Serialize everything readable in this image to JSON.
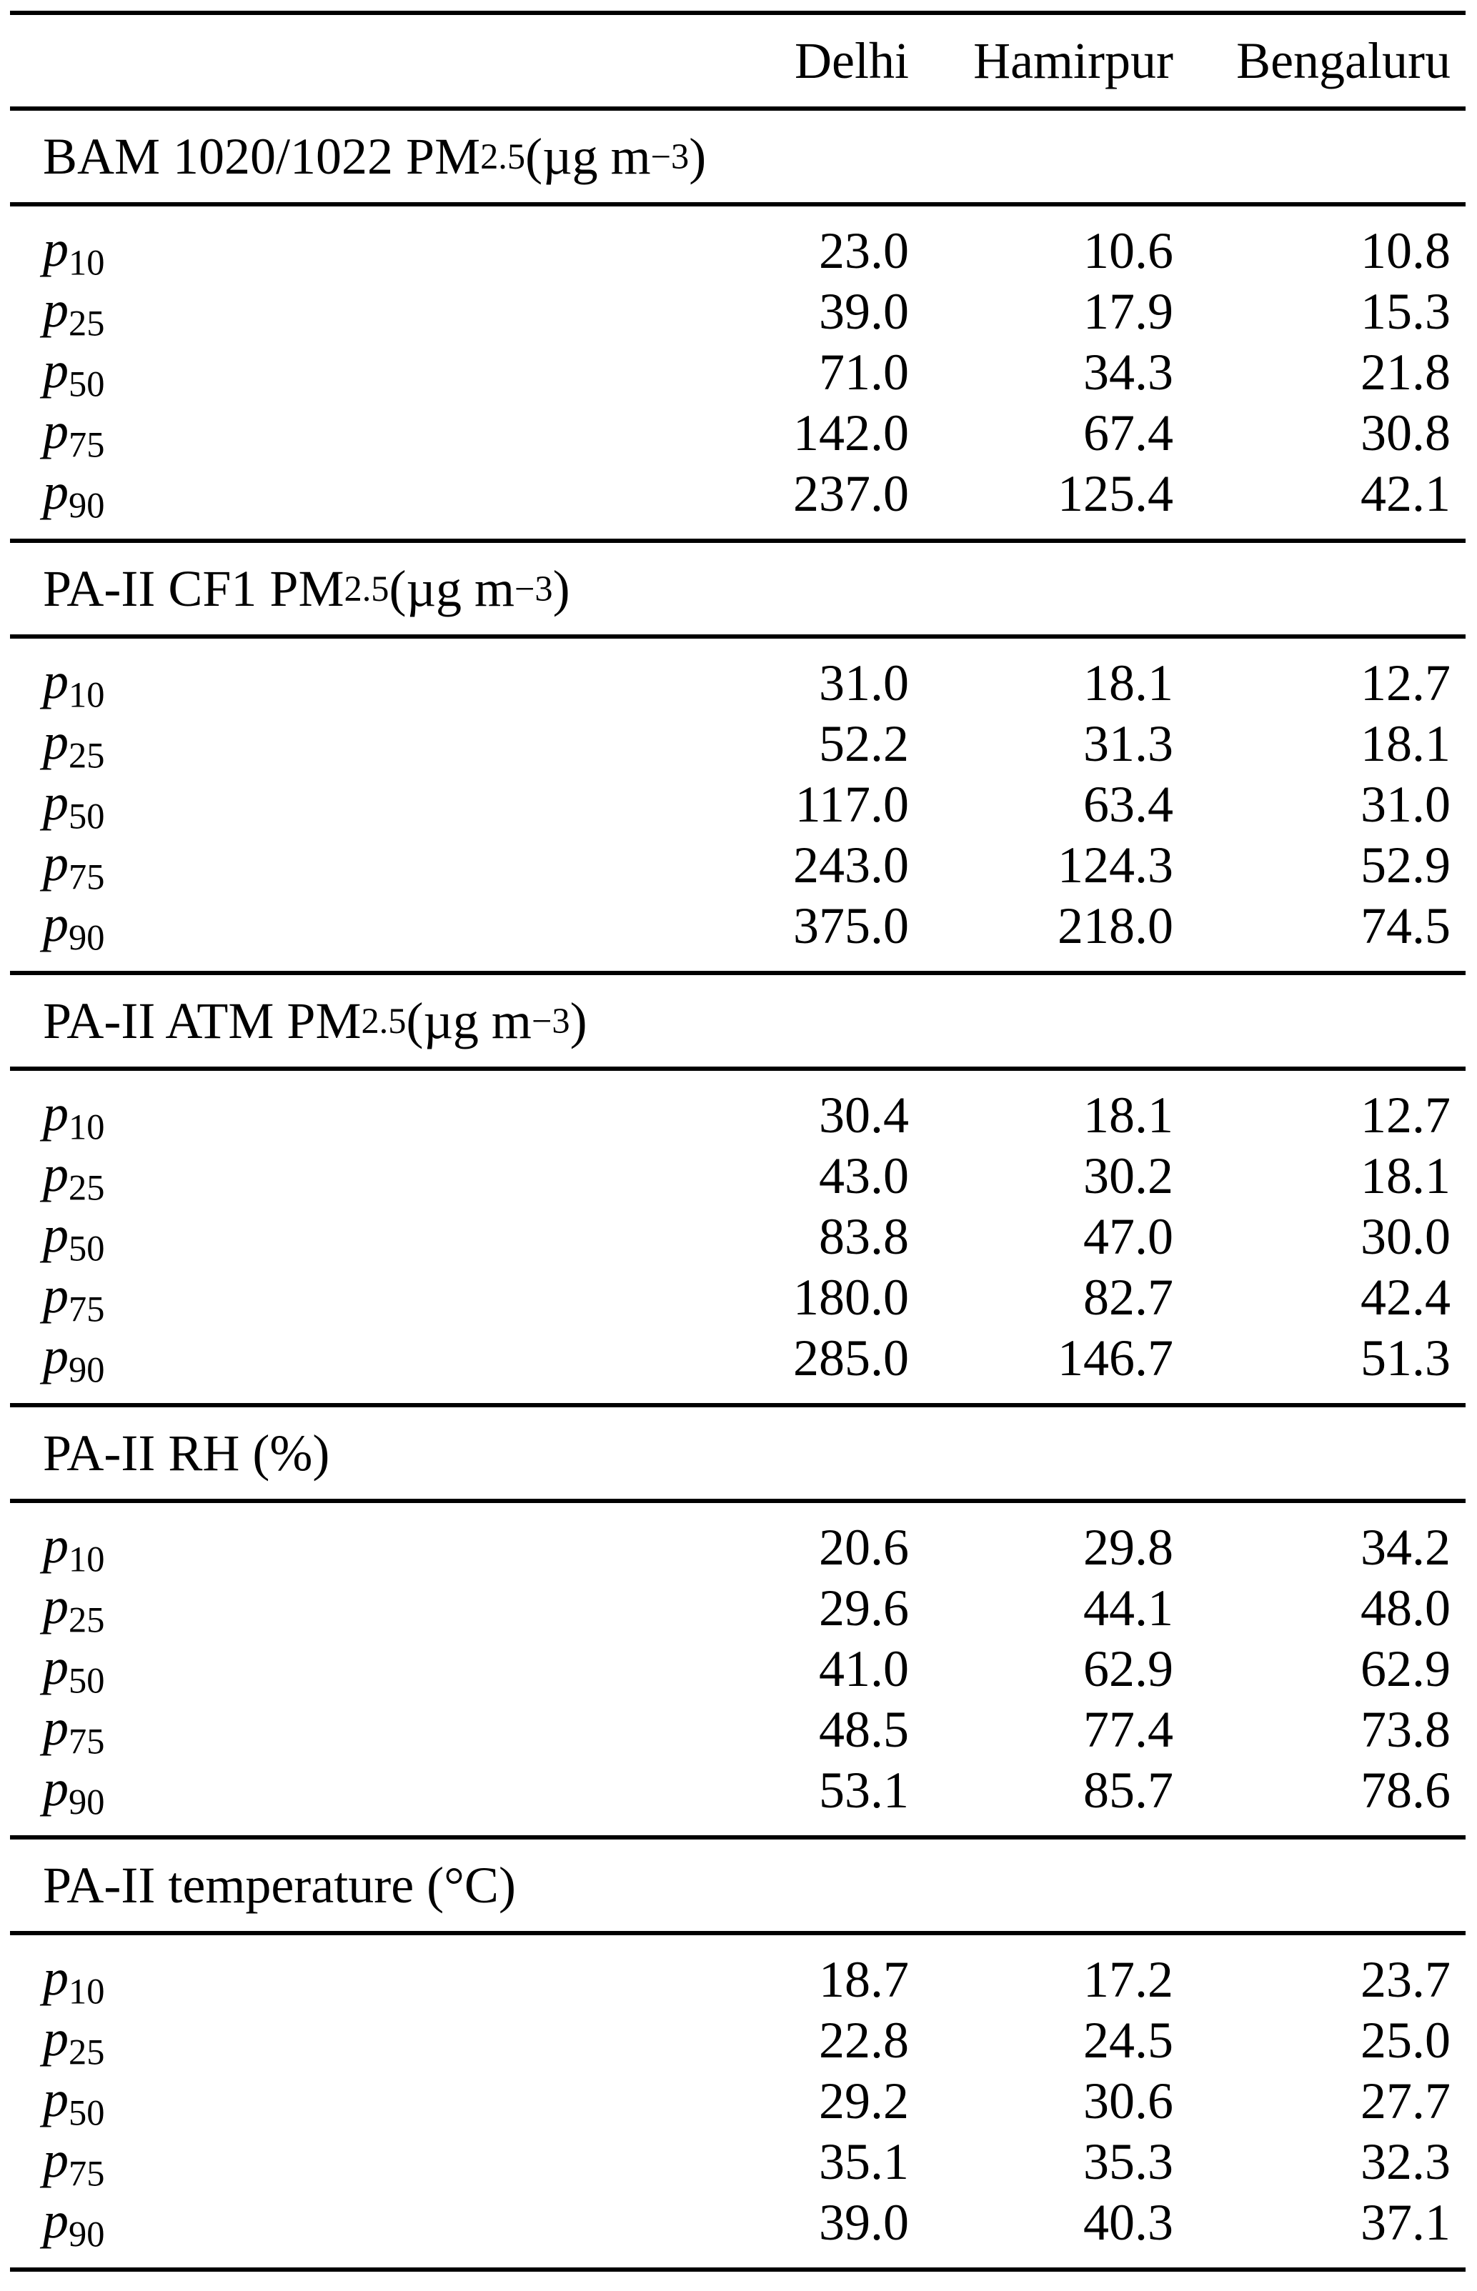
{
  "meta": {
    "background_color": "#ffffff",
    "text_color": "#000000",
    "rule_color": "#000000"
  },
  "table": {
    "header": {
      "columns": [
        "Delhi",
        "Hamirpur",
        "Bengaluru"
      ]
    },
    "sections": [
      {
        "id": "bam-pm25",
        "title": [
          {
            "t": "BAM 1020/1022 PM"
          },
          {
            "t": "2.5",
            "s": "sub"
          },
          {
            "t": " (µg m"
          },
          {
            "t": "−3",
            "s": "sup"
          },
          {
            "t": ")"
          }
        ],
        "rows": [
          {
            "label": [
              {
                "t": "p",
                "s": "it"
              },
              {
                "t": "10",
                "s": "sub"
              }
            ],
            "values": [
              "23.0",
              "10.6",
              "10.8"
            ]
          },
          {
            "label": [
              {
                "t": "p",
                "s": "it"
              },
              {
                "t": "25",
                "s": "sub"
              }
            ],
            "values": [
              "39.0",
              "17.9",
              "15.3"
            ]
          },
          {
            "label": [
              {
                "t": "p",
                "s": "it"
              },
              {
                "t": "50",
                "s": "sub"
              }
            ],
            "values": [
              "71.0",
              "34.3",
              "21.8"
            ]
          },
          {
            "label": [
              {
                "t": "p",
                "s": "it"
              },
              {
                "t": "75",
                "s": "sub"
              }
            ],
            "values": [
              "142.0",
              "67.4",
              "30.8"
            ]
          },
          {
            "label": [
              {
                "t": "p",
                "s": "it"
              },
              {
                "t": "90",
                "s": "sub"
              }
            ],
            "values": [
              "237.0",
              "125.4",
              "42.1"
            ]
          }
        ]
      },
      {
        "id": "pa2-cf1-pm25",
        "title": [
          {
            "t": "PA-II CF1 PM"
          },
          {
            "t": "2.5",
            "s": "sub"
          },
          {
            "t": " (µg m"
          },
          {
            "t": "−3",
            "s": "sup"
          },
          {
            "t": ")"
          }
        ],
        "rows": [
          {
            "label": [
              {
                "t": "p",
                "s": "it"
              },
              {
                "t": "10",
                "s": "sub"
              }
            ],
            "values": [
              "31.0",
              "18.1",
              "12.7"
            ]
          },
          {
            "label": [
              {
                "t": "p",
                "s": "it"
              },
              {
                "t": "25",
                "s": "sub"
              }
            ],
            "values": [
              "52.2",
              "31.3",
              "18.1"
            ]
          },
          {
            "label": [
              {
                "t": "p",
                "s": "it"
              },
              {
                "t": "50",
                "s": "sub"
              }
            ],
            "values": [
              "117.0",
              "63.4",
              "31.0"
            ]
          },
          {
            "label": [
              {
                "t": "p",
                "s": "it"
              },
              {
                "t": "75",
                "s": "sub"
              }
            ],
            "values": [
              "243.0",
              "124.3",
              "52.9"
            ]
          },
          {
            "label": [
              {
                "t": "p",
                "s": "it"
              },
              {
                "t": "90",
                "s": "sub"
              }
            ],
            "values": [
              "375.0",
              "218.0",
              "74.5"
            ]
          }
        ]
      },
      {
        "id": "pa2-atm-pm25",
        "title": [
          {
            "t": "PA-II ATM PM"
          },
          {
            "t": "2.5",
            "s": "sub"
          },
          {
            "t": " (µg m"
          },
          {
            "t": "−3",
            "s": "sup"
          },
          {
            "t": ")"
          }
        ],
        "rows": [
          {
            "label": [
              {
                "t": "p",
                "s": "it"
              },
              {
                "t": "10",
                "s": "sub"
              }
            ],
            "values": [
              "30.4",
              "18.1",
              "12.7"
            ]
          },
          {
            "label": [
              {
                "t": "p",
                "s": "it"
              },
              {
                "t": "25",
                "s": "sub"
              }
            ],
            "values": [
              "43.0",
              "30.2",
              "18.1"
            ]
          },
          {
            "label": [
              {
                "t": "p",
                "s": "it"
              },
              {
                "t": "50",
                "s": "sub"
              }
            ],
            "values": [
              "83.8",
              "47.0",
              "30.0"
            ]
          },
          {
            "label": [
              {
                "t": "p",
                "s": "it"
              },
              {
                "t": "75",
                "s": "sub"
              }
            ],
            "values": [
              "180.0",
              "82.7",
              "42.4"
            ]
          },
          {
            "label": [
              {
                "t": "p",
                "s": "it"
              },
              {
                "t": "90",
                "s": "sub"
              }
            ],
            "values": [
              "285.0",
              "146.7",
              "51.3"
            ]
          }
        ]
      },
      {
        "id": "pa2-rh",
        "title": [
          {
            "t": "PA-II RH (%)"
          }
        ],
        "rows": [
          {
            "label": [
              {
                "t": "p",
                "s": "it"
              },
              {
                "t": "10",
                "s": "sub"
              }
            ],
            "values": [
              "20.6",
              "29.8",
              "34.2"
            ]
          },
          {
            "label": [
              {
                "t": "p",
                "s": "it"
              },
              {
                "t": "25",
                "s": "sub"
              }
            ],
            "values": [
              "29.6",
              "44.1",
              "48.0"
            ]
          },
          {
            "label": [
              {
                "t": "p",
                "s": "it"
              },
              {
                "t": "50",
                "s": "sub"
              }
            ],
            "values": [
              "41.0",
              "62.9",
              "62.9"
            ]
          },
          {
            "label": [
              {
                "t": "p",
                "s": "it"
              },
              {
                "t": "75",
                "s": "sub"
              }
            ],
            "values": [
              "48.5",
              "77.4",
              "73.8"
            ]
          },
          {
            "label": [
              {
                "t": "p",
                "s": "it"
              },
              {
                "t": "90",
                "s": "sub"
              }
            ],
            "values": [
              "53.1",
              "85.7",
              "78.6"
            ]
          }
        ]
      },
      {
        "id": "pa2-temperature",
        "title": [
          {
            "t": "PA-II temperature (°C)"
          }
        ],
        "rows": [
          {
            "label": [
              {
                "t": "p",
                "s": "it"
              },
              {
                "t": "10",
                "s": "sub"
              }
            ],
            "values": [
              "18.7",
              "17.2",
              "23.7"
            ]
          },
          {
            "label": [
              {
                "t": "p",
                "s": "it"
              },
              {
                "t": "25",
                "s": "sub"
              }
            ],
            "values": [
              "22.8",
              "24.5",
              "25.0"
            ]
          },
          {
            "label": [
              {
                "t": "p",
                "s": "it"
              },
              {
                "t": "50",
                "s": "sub"
              }
            ],
            "values": [
              "29.2",
              "30.6",
              "27.7"
            ]
          },
          {
            "label": [
              {
                "t": "p",
                "s": "it"
              },
              {
                "t": "75",
                "s": "sub"
              }
            ],
            "values": [
              "35.1",
              "35.3",
              "32.3"
            ]
          },
          {
            "label": [
              {
                "t": "p",
                "s": "it"
              },
              {
                "t": "90",
                "s": "sub"
              }
            ],
            "values": [
              "39.0",
              "40.3",
              "37.1"
            ]
          }
        ]
      }
    ]
  }
}
